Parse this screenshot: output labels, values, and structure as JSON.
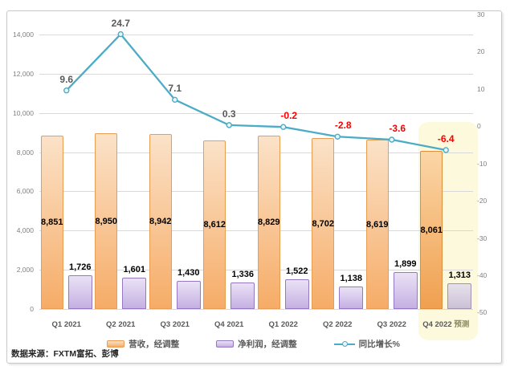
{
  "source_note": "数据来源：FXTM富拓、彭博",
  "chart_data": {
    "type": "bar",
    "subtype": "combo-bar-line-dual-axis",
    "categories": [
      "Q1 2021",
      "Q2 2021",
      "Q3 2021",
      "Q4 2021",
      "Q1 2022",
      "Q2 2022",
      "Q3 2022",
      "Q4 2022 预测"
    ],
    "forecast_suffix": "预测",
    "forecast_index": 7,
    "series": [
      {
        "name": "营收，经调整",
        "type": "bar",
        "axis": "left",
        "values": [
          8851,
          8950,
          8942,
          8612,
          8829,
          8702,
          8619,
          8061
        ],
        "labels": [
          "8,851",
          "8,950",
          "8,942",
          "8,612",
          "8,829",
          "8,702",
          "8,619",
          "8,061"
        ]
      },
      {
        "name": "净利润，经调整",
        "type": "bar",
        "axis": "left",
        "values": [
          1726,
          1601,
          1430,
          1336,
          1522,
          1138,
          1899,
          1313
        ],
        "labels": [
          "1,726",
          "1,601",
          "1,430",
          "1,336",
          "1,522",
          "1,138",
          "1,899",
          "1,313"
        ]
      },
      {
        "name": "同比增长%",
        "type": "line",
        "axis": "right",
        "values": [
          9.6,
          24.7,
          7.1,
          0.3,
          -0.2,
          -2.8,
          -3.6,
          -6.4
        ],
        "labels": [
          "9.6",
          "24.7",
          "7.1",
          "0.3",
          "-0.2",
          "-2.8",
          "-3.6",
          "-6.4"
        ]
      }
    ],
    "left_axis": {
      "min": 0,
      "max": 14000,
      "step": 2000,
      "ticks": [
        14000,
        12000,
        10000,
        8000,
        6000,
        4000,
        2000,
        0
      ],
      "tick_labels": [
        "14,000",
        "12,000",
        "10,000",
        "8,000",
        "6,000",
        "4,000",
        "2,000",
        "0"
      ]
    },
    "right_axis": {
      "min": -50,
      "max": 30,
      "step": 10,
      "ticks": [
        30,
        20,
        10,
        0,
        -10,
        -20,
        -30,
        -40,
        -50
      ],
      "tick_labels": [
        "30",
        "20",
        "10",
        "0",
        "-10",
        "-20",
        "-30",
        "-40",
        "-50"
      ]
    },
    "grid": true,
    "legend_position": "bottom"
  },
  "colors": {
    "revenue_fill_top": "#fbe2c8",
    "revenue_fill_bottom": "#f6ac67",
    "revenue_border": "#e99c53",
    "revenue_forecast_fill_top": "#fbd6a6",
    "revenue_forecast_fill_bottom": "#f0a050",
    "revenue_forecast_border": "#dd8f3e",
    "profit_fill_top": "#eae2f6",
    "profit_fill_bottom": "#c5b0e2",
    "profit_border": "#9678c0",
    "profit_forecast_fill_top": "#e6e1ea",
    "profit_forecast_fill_bottom": "#ccc1d6",
    "profit_forecast_border": "#a193ae",
    "line": "#4bacc6",
    "marker_fill": "#eaf5f9",
    "label_positive": "#595959",
    "label_negative": "#fe0000",
    "axis_label": "#7f7f7f",
    "gridline": "#d9d9d9",
    "highlight_bg": "#fdf9dd"
  }
}
